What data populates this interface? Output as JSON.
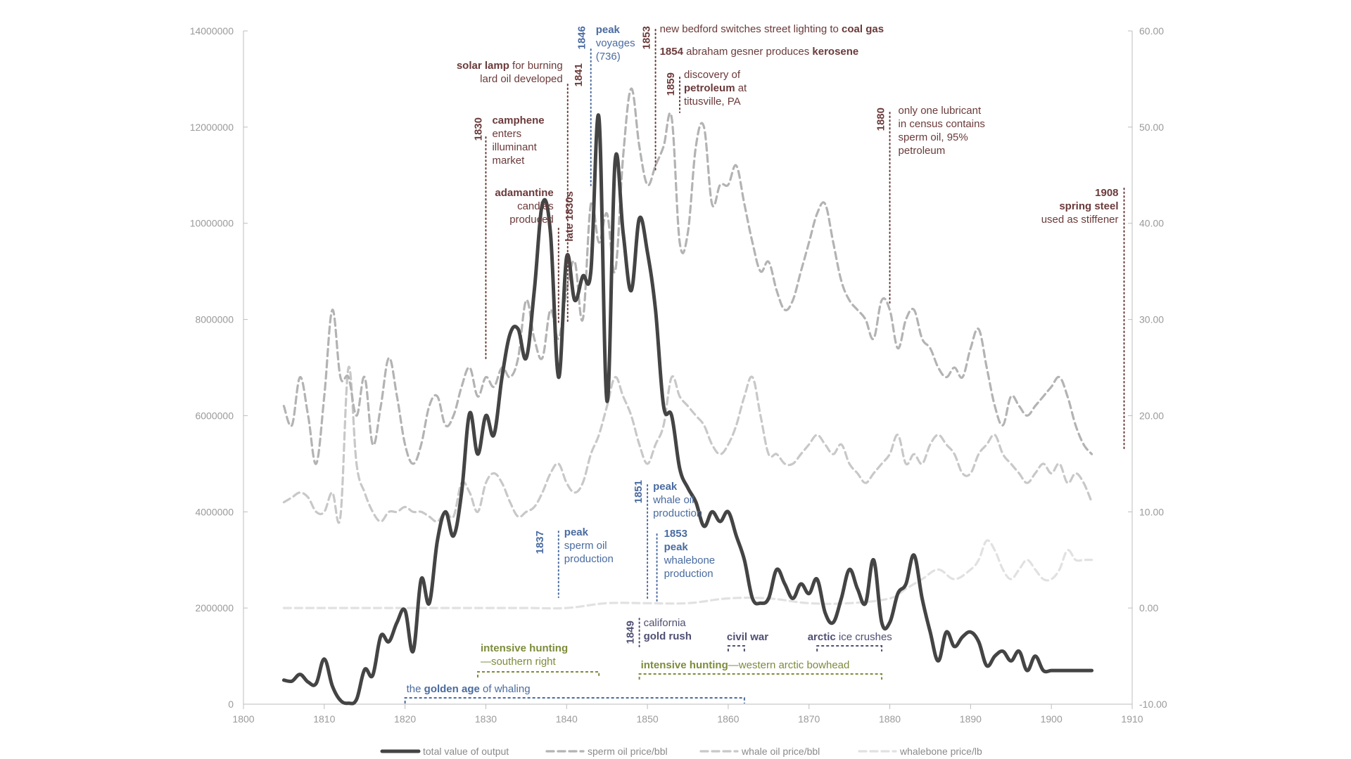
{
  "chart_data": {
    "type": "line",
    "x_axis": {
      "min": 1800,
      "max": 1910,
      "ticks": [
        "1800",
        "1810",
        "1820",
        "1830",
        "1840",
        "1850",
        "1860",
        "1870",
        "1880",
        "1890",
        "1900",
        "1910"
      ]
    },
    "y_left": {
      "min": 0,
      "max": 14000000,
      "ticks": [
        "0",
        "2000000",
        "4000000",
        "6000000",
        "8000000",
        "10000000",
        "12000000",
        "14000000"
      ]
    },
    "y_right": {
      "min": -10,
      "max": 60,
      "ticks": [
        "-10.00",
        "0.00",
        "10.00",
        "20.00",
        "30.00",
        "40.00",
        "50.00",
        "60.00"
      ]
    },
    "grid": false,
    "legend_position": "bottom",
    "series": [
      {
        "name": "total value of output",
        "axis": "left",
        "style": "solid",
        "color": "#444444",
        "x": [
          1805,
          1806,
          1807,
          1808,
          1809,
          1810,
          1811,
          1812,
          1813,
          1814,
          1815,
          1816,
          1817,
          1818,
          1819,
          1820,
          1821,
          1822,
          1823,
          1824,
          1825,
          1826,
          1827,
          1828,
          1829,
          1830,
          1831,
          1832,
          1833,
          1834,
          1835,
          1836,
          1837,
          1838,
          1839,
          1840,
          1841,
          1842,
          1843,
          1844,
          1845,
          1846,
          1847,
          1848,
          1849,
          1850,
          1851,
          1852,
          1853,
          1854,
          1855,
          1856,
          1857,
          1858,
          1859,
          1860,
          1861,
          1862,
          1863,
          1864,
          1865,
          1866,
          1867,
          1868,
          1869,
          1870,
          1871,
          1872,
          1873,
          1874,
          1875,
          1876,
          1877,
          1878,
          1879,
          1880,
          1881,
          1882,
          1883,
          1884,
          1885,
          1886,
          1887,
          1888,
          1889,
          1890,
          1891,
          1892,
          1893,
          1894,
          1895,
          1896,
          1897,
          1898,
          1899,
          1900,
          1901,
          1902,
          1903,
          1904,
          1905
        ],
        "y": [
          500000,
          480000,
          620000,
          460000,
          430000,
          940000,
          380000,
          80000,
          20000,
          100000,
          720000,
          600000,
          1420000,
          1300000,
          1700000,
          1950000,
          1100000,
          2600000,
          2100000,
          3400000,
          4000000,
          3500000,
          4400000,
          6050000,
          5200000,
          6000000,
          5600000,
          6800000,
          7700000,
          7800000,
          7200000,
          8600000,
          10400000,
          9800000,
          6800000,
          9300000,
          8400000,
          8900000,
          9000000,
          12200000,
          6300000,
          11300000,
          9800000,
          8600000,
          10100000,
          9400000,
          8200000,
          6200000,
          6000000,
          4900000,
          4500000,
          4200000,
          3700000,
          4000000,
          3800000,
          4000000,
          3500000,
          3000000,
          2200000,
          2100000,
          2200000,
          2800000,
          2500000,
          2200000,
          2500000,
          2300000,
          2600000,
          1900000,
          1700000,
          2200000,
          2800000,
          2400000,
          2100000,
          3000000,
          1700000,
          1700000,
          2300000,
          2500000,
          3100000,
          2200000,
          1500000,
          900000,
          1500000,
          1200000,
          1400000,
          1500000,
          1300000,
          800000,
          1000000,
          1100000,
          900000,
          1100000,
          700000,
          1000000,
          700000,
          700000,
          700000,
          700000,
          700000,
          700000,
          700000
        ]
      },
      {
        "name": "sperm oil price/bbl",
        "axis": "right",
        "style": "dashed",
        "color": "#b3b3b3",
        "x": [
          1805,
          1806,
          1807,
          1808,
          1809,
          1810,
          1811,
          1812,
          1813,
          1814,
          1815,
          1816,
          1817,
          1818,
          1819,
          1820,
          1821,
          1822,
          1823,
          1824,
          1825,
          1826,
          1827,
          1828,
          1829,
          1830,
          1831,
          1832,
          1833,
          1834,
          1835,
          1836,
          1837,
          1838,
          1839,
          1840,
          1841,
          1842,
          1843,
          1844,
          1845,
          1846,
          1847,
          1848,
          1849,
          1850,
          1851,
          1852,
          1853,
          1854,
          1855,
          1856,
          1857,
          1858,
          1859,
          1860,
          1861,
          1862,
          1863,
          1864,
          1865,
          1866,
          1867,
          1868,
          1869,
          1870,
          1871,
          1872,
          1873,
          1874,
          1875,
          1876,
          1877,
          1878,
          1879,
          1880,
          1881,
          1882,
          1883,
          1884,
          1885,
          1886,
          1887,
          1888,
          1889,
          1890,
          1891,
          1892,
          1893,
          1894,
          1895,
          1896,
          1897,
          1898,
          1899,
          1900,
          1901,
          1902,
          1903,
          1904,
          1905
        ],
        "y": [
          21,
          19,
          24,
          20,
          15,
          22,
          31,
          24,
          24,
          20,
          24,
          17,
          21,
          26,
          22,
          17,
          15,
          17,
          21,
          22,
          19,
          20,
          23,
          25,
          22,
          24,
          23,
          25,
          24,
          26,
          32,
          28,
          26,
          31,
          28,
          33,
          36,
          30,
          42,
          38,
          41,
          35,
          47,
          54,
          48,
          44,
          46,
          48,
          51,
          38,
          39,
          48,
          50,
          42,
          44,
          44,
          46,
          42,
          38,
          35,
          36,
          33,
          31,
          32,
          35,
          38,
          41,
          42,
          38,
          34,
          32,
          31,
          30,
          28,
          32,
          31,
          27,
          30,
          31,
          28,
          27,
          25,
          24,
          25,
          24,
          27,
          29,
          25,
          21,
          19,
          22,
          21,
          20,
          21,
          22,
          23,
          24,
          22,
          19,
          17,
          16
        ]
      },
      {
        "name": "whale oil price/bbl",
        "axis": "right",
        "style": "dashed",
        "color": "#c8c8c8",
        "x": [
          1805,
          1806,
          1807,
          1808,
          1809,
          1810,
          1811,
          1812,
          1813,
          1814,
          1815,
          1816,
          1817,
          1818,
          1819,
          1820,
          1821,
          1822,
          1823,
          1824,
          1825,
          1826,
          1827,
          1828,
          1829,
          1830,
          1831,
          1832,
          1833,
          1834,
          1835,
          1836,
          1837,
          1838,
          1839,
          1840,
          1841,
          1842,
          1843,
          1844,
          1845,
          1846,
          1847,
          1848,
          1849,
          1850,
          1851,
          1852,
          1853,
          1854,
          1855,
          1856,
          1857,
          1858,
          1859,
          1860,
          1861,
          1862,
          1863,
          1864,
          1865,
          1866,
          1867,
          1868,
          1869,
          1870,
          1871,
          1872,
          1873,
          1874,
          1875,
          1876,
          1877,
          1878,
          1879,
          1880,
          1881,
          1882,
          1883,
          1884,
          1885,
          1886,
          1887,
          1888,
          1889,
          1890,
          1891,
          1892,
          1893,
          1894,
          1895,
          1896,
          1897,
          1898,
          1899,
          1900,
          1901,
          1902,
          1903,
          1904,
          1905
        ],
        "y": [
          11,
          11.5,
          12,
          11.5,
          10,
          10,
          12,
          9.5,
          25,
          15,
          12,
          10,
          9,
          10,
          10,
          10.5,
          10,
          10,
          9.5,
          9,
          10,
          9.5,
          13,
          12,
          10,
          13,
          14,
          13,
          11,
          9.5,
          10,
          10.5,
          12,
          14,
          15,
          13,
          12,
          13,
          16,
          18,
          21,
          24,
          22,
          20,
          17,
          15,
          17,
          19,
          24,
          22,
          21,
          20,
          19,
          17,
          16,
          17,
          19,
          22,
          24,
          20,
          16,
          16,
          15,
          15,
          16,
          17,
          18,
          17,
          16,
          17,
          15,
          14,
          13,
          14,
          15,
          16,
          18,
          15,
          16,
          15,
          17,
          18,
          17,
          16,
          14,
          14,
          16,
          17,
          18,
          16,
          15,
          14,
          13,
          14,
          15,
          14,
          15,
          13,
          14,
          13,
          11
        ]
      },
      {
        "name": "whalebone price/lb",
        "axis": "right",
        "style": "dashed",
        "color": "#e1e1e1",
        "x": [
          1805,
          1810,
          1815,
          1820,
          1825,
          1830,
          1835,
          1840,
          1845,
          1850,
          1855,
          1860,
          1865,
          1870,
          1875,
          1880,
          1882,
          1884,
          1886,
          1888,
          1890,
          1891,
          1892,
          1893,
          1894,
          1895,
          1896,
          1897,
          1898,
          1899,
          1900,
          1901,
          1902,
          1903,
          1904,
          1905
        ],
        "y": [
          0,
          0,
          0,
          0,
          0,
          0,
          0,
          0,
          0.5,
          0.5,
          0.5,
          1,
          1,
          0.5,
          0.5,
          1,
          2,
          3,
          4,
          3,
          4,
          5,
          7,
          6,
          4,
          3,
          4,
          5,
          4,
          3,
          3,
          4,
          6,
          5,
          5,
          5
        ]
      }
    ]
  },
  "annotations": [
    {
      "kind": "events",
      "year": "1830",
      "title": "camphene",
      "rest": "enters illuminant market"
    },
    {
      "kind": "events",
      "year": "late 1830s",
      "title": "adamantine",
      "rest": "candles produced"
    },
    {
      "kind": "events",
      "year": "1841",
      "title": "solar lamp",
      "rest": "for burning lard oil developed"
    },
    {
      "kind": "peaks",
      "year": "1846",
      "title": "peak",
      "rest": "voyages (736)"
    },
    {
      "kind": "events",
      "year": "1853",
      "title": "",
      "rest": "new bedford switches street lighting to",
      "title2": "coal gas"
    },
    {
      "kind": "events",
      "year": "1854",
      "title": "",
      "rest": "abraham gesner produces",
      "title2": "kerosene"
    },
    {
      "kind": "events",
      "year": "1859",
      "title": "petroleum",
      "rest_pre": "discovery of",
      "rest": "at titusville, PA"
    },
    {
      "kind": "events",
      "year": "1880",
      "title": "",
      "rest": "only one lubricant in census contains sperm oil, 95% petroleum"
    },
    {
      "kind": "events",
      "year": "1908",
      "title": "spring steel",
      "rest": "used as stiffener"
    },
    {
      "kind": "peaks",
      "year": "1837",
      "title": "peak",
      "rest": "sperm oil production"
    },
    {
      "kind": "peaks",
      "year": "1851",
      "title": "peak",
      "rest": "whale oil production"
    },
    {
      "kind": "peaks",
      "year": "1853",
      "title": "peak",
      "rest": "whalebone production"
    },
    {
      "kind": "history",
      "year": "1849",
      "title": "gold rush",
      "rest": "california"
    }
  ],
  "periods": [
    {
      "label_bold": "intensive hunting",
      "label_rest": "—southern right",
      "start": 1829,
      "end": 1844,
      "color": "#7d8c3c"
    },
    {
      "label_bold": "intensive hunting",
      "label_rest": "—western arctic bowhead",
      "start": 1849,
      "end": 1879,
      "color": "#7d8c3c"
    },
    {
      "label_bold": "civil war",
      "label_rest": "",
      "start": 1860,
      "end": 1862,
      "color": "#4f4f73"
    },
    {
      "label_bold": "arctic",
      "label_rest": "ice crushes",
      "start": 1871,
      "end": 1879,
      "color": "#4f4f73"
    },
    {
      "label_pre": "the",
      "label_bold": "golden age",
      "label_rest": "of whaling",
      "start": 1820,
      "end": 1862,
      "color": "#4a6ba0"
    }
  ],
  "colors": {
    "event": "#6b3a3a",
    "peak": "#4a6ba0",
    "history": "#4f4f73",
    "period_hunting": "#7d8c3c"
  }
}
